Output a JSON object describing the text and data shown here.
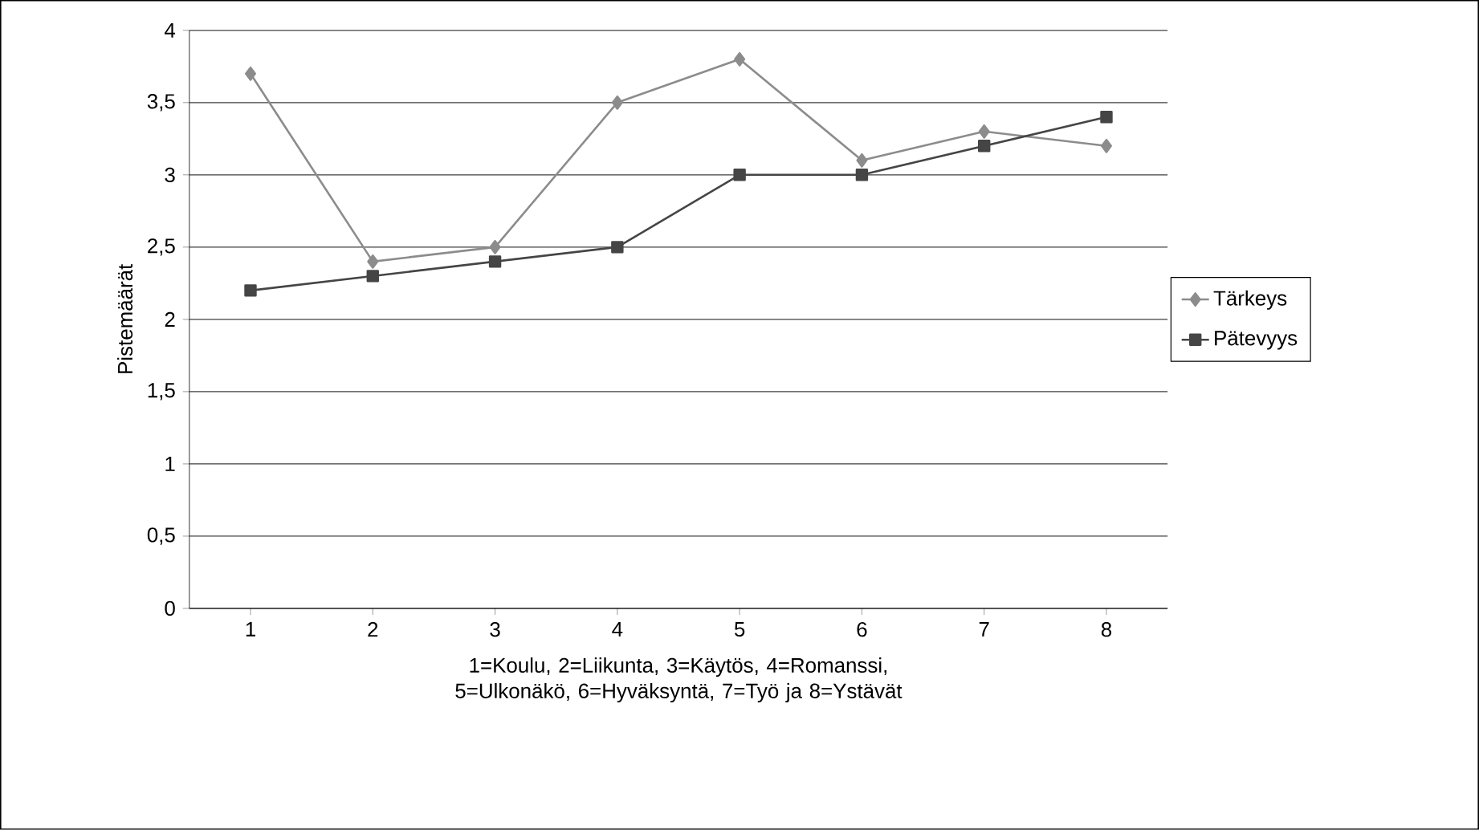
{
  "chart_data": {
    "type": "line",
    "xlabel": "1=Koulu, 2=Liikunta, 3=Käytös, 4=Romanssi, 5=Ulkonäkö, 6=Hyväksyntä, 7=Työ ja 8=Ystävät",
    "ylabel": "Pistemäärät",
    "categories": [
      "1",
      "2",
      "3",
      "4",
      "5",
      "6",
      "7",
      "8"
    ],
    "series": [
      {
        "name": "Tärkeys",
        "color": "#8c8c8c",
        "marker": "diamond",
        "values": [
          3.7,
          2.4,
          2.5,
          3.5,
          3.8,
          3.1,
          3.3,
          3.2
        ]
      },
      {
        "name": "Pätevyys",
        "color": "#454545",
        "marker": "square",
        "values": [
          2.2,
          2.3,
          2.4,
          2.5,
          3.0,
          3.0,
          3.2,
          3.4
        ]
      }
    ],
    "ylim": [
      0,
      4
    ],
    "yticks": [
      0,
      {
        "value": 0.5,
        "label": "0,5"
      },
      1,
      {
        "value": 1.5,
        "label": "1,5"
      },
      2,
      {
        "value": 2.5,
        "label": "2,5"
      },
      3,
      {
        "value": 3.5,
        "label": "3,5"
      },
      4
    ],
    "grid": "y",
    "legend": "right",
    "line_style": "solid"
  }
}
